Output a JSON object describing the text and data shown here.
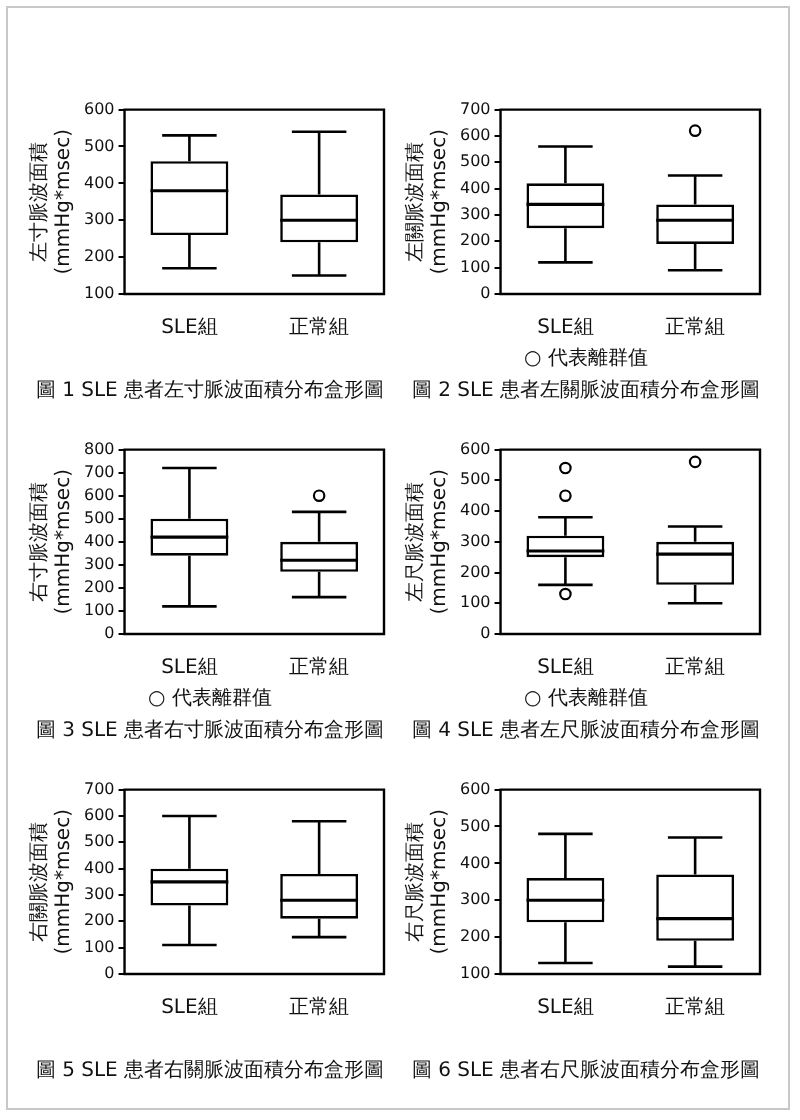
{
  "chart_data": [
    {
      "type": "box",
      "title": "圖 1  SLE 患者左寸脈波面積分布盒形圖",
      "ylabel": "左寸脈波面積(mmHg*msec)",
      "categories": [
        "SLE組",
        "正常組"
      ],
      "color": "#000000",
      "ylim": [
        100,
        600
      ],
      "yticks": [
        100,
        200,
        300,
        400,
        500,
        600
      ],
      "boxes": [
        {
          "low": 170,
          "q1": 260,
          "median": 380,
          "q3": 460,
          "high": 530
        },
        {
          "low": 150,
          "q1": 240,
          "median": 300,
          "q3": 370,
          "high": 540
        }
      ]
    },
    {
      "type": "box",
      "title": "圖 2  SLE 患者左關脈波面積分布盒形圖",
      "ylabel": "左關脈波面積(mmHg*msec)",
      "categories": [
        "SLE組",
        "正常組"
      ],
      "color": "#000000",
      "ylim": [
        0,
        700
      ],
      "yticks": [
        0,
        100,
        200,
        300,
        400,
        500,
        600,
        700
      ],
      "annotations": [
        "○ 代表離群值"
      ],
      "boxes": [
        {
          "low": 120,
          "q1": 250,
          "median": 340,
          "q3": 420,
          "high": 560
        },
        {
          "low": 90,
          "q1": 190,
          "median": 280,
          "q3": 340,
          "high": 450,
          "outliers": [
            620
          ]
        }
      ]
    },
    {
      "type": "box",
      "title": "圖 3  SLE 患者右寸脈波面積分布盒形圖",
      "ylabel": "右寸脈波面積(mmHg*msec)",
      "categories": [
        "SLE組",
        "正常組"
      ],
      "color": "#000000",
      "ylim": [
        0,
        800
      ],
      "yticks": [
        0,
        100,
        200,
        300,
        400,
        500,
        600,
        700,
        800
      ],
      "annotations": [
        "○ 代表離群值"
      ],
      "boxes": [
        {
          "low": 120,
          "q1": 340,
          "median": 420,
          "q3": 500,
          "high": 720
        },
        {
          "low": 160,
          "q1": 270,
          "median": 320,
          "q3": 400,
          "high": 530,
          "outliers": [
            600
          ]
        }
      ]
    },
    {
      "type": "box",
      "title": "圖 4  SLE 患者左尺脈波面積分布盒形圖",
      "ylabel": "左尺脈波面積(mmHg*msec)",
      "categories": [
        "SLE組",
        "正常組"
      ],
      "color": "#000000",
      "ylim": [
        0,
        600
      ],
      "yticks": [
        0,
        100,
        200,
        300,
        400,
        500,
        600
      ],
      "annotations": [
        "○ 代表離群值"
      ],
      "boxes": [
        {
          "low": 160,
          "q1": 250,
          "median": 270,
          "q3": 320,
          "high": 380,
          "outliers": [
            540,
            450,
            130
          ]
        },
        {
          "low": 100,
          "q1": 160,
          "median": 260,
          "q3": 300,
          "high": 350,
          "outliers": [
            560
          ]
        }
      ]
    },
    {
      "type": "box",
      "title": "圖 5  SLE 患者右關脈波面積分布盒形圖",
      "ylabel": "右關脈波面積(mmHg*msec)",
      "categories": [
        "SLE組",
        "正常組"
      ],
      "color": "#000000",
      "ylim": [
        0,
        700
      ],
      "yticks": [
        0,
        100,
        200,
        300,
        400,
        500,
        600,
        700
      ],
      "boxes": [
        {
          "low": 110,
          "q1": 260,
          "median": 350,
          "q3": 400,
          "high": 600
        },
        {
          "low": 140,
          "q1": 210,
          "median": 280,
          "q3": 380,
          "high": 580
        }
      ]
    },
    {
      "type": "box",
      "title": "圖 6  SLE 患者右尺脈波面積分布盒形圖",
      "ylabel": "右尺脈波面積(mmHg*msec)",
      "categories": [
        "SLE組",
        "正常組"
      ],
      "color": "#000000",
      "ylim": [
        100,
        600
      ],
      "yticks": [
        100,
        200,
        300,
        400,
        500,
        600
      ],
      "boxes": [
        {
          "low": 130,
          "q1": 240,
          "median": 300,
          "q3": 360,
          "high": 480
        },
        {
          "low": 120,
          "q1": 190,
          "median": 250,
          "q3": 370,
          "high": 470
        }
      ]
    }
  ]
}
